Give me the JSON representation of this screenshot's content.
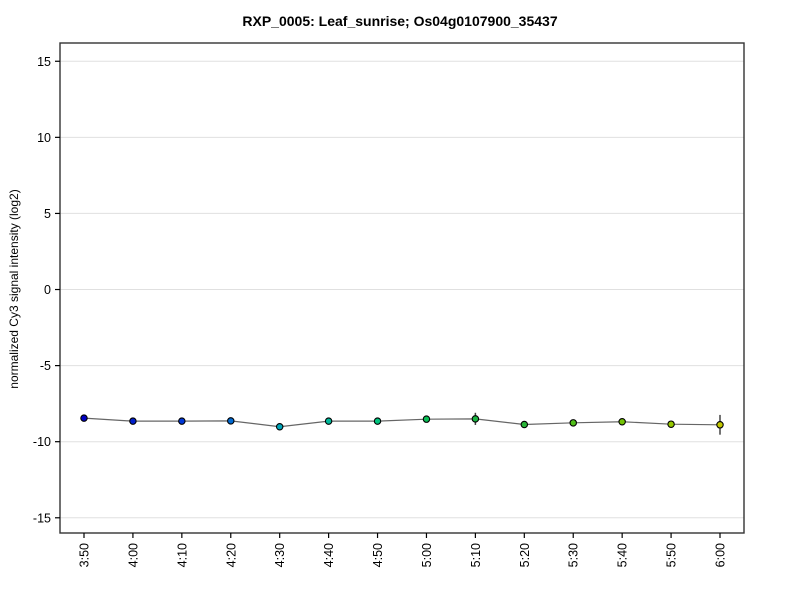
{
  "chart_data": {
    "type": "line",
    "title": "RXP_0005: Leaf_sunrise; Os04g0107900_35437",
    "ylabel": "normalized Cy3 signal intensity (log2)",
    "xlabel": "",
    "categories": [
      "3:50",
      "4:00",
      "4:10",
      "4:20",
      "4:30",
      "4:40",
      "4:50",
      "5:00",
      "5:10",
      "5:20",
      "5:30",
      "5:40",
      "5:50",
      "6:00"
    ],
    "values": [
      -8.45,
      -8.65,
      -8.65,
      -8.63,
      -9.02,
      -8.65,
      -8.65,
      -8.52,
      -8.5,
      -8.87,
      -8.76,
      -8.69,
      -8.85,
      -8.89
    ],
    "errors": [
      0.12,
      0.18,
      0.15,
      0.15,
      0.12,
      0.12,
      0.12,
      0.12,
      0.4,
      0.15,
      0.12,
      0.15,
      0.12,
      0.65
    ],
    "point_colors": [
      "#0000C3",
      "#001ECD",
      "#0037D7",
      "#0069D2",
      "#00A5B9",
      "#00B99B",
      "#00C37D",
      "#0ABE55",
      "#19B441",
      "#28B437",
      "#50BE19",
      "#73C305",
      "#96C800",
      "#C3C800"
    ],
    "yticks": [
      -15,
      -10,
      -5,
      0,
      5,
      10,
      15
    ],
    "ylim": [
      -16.0,
      16.2
    ],
    "grid": true,
    "legend": "none",
    "style": {
      "line": "#666666",
      "grid": "#e0e0e0",
      "frame": "#333333",
      "error": "#444444",
      "marker_stroke": "#000000",
      "text": "#000000",
      "background": "#ffffff"
    }
  }
}
